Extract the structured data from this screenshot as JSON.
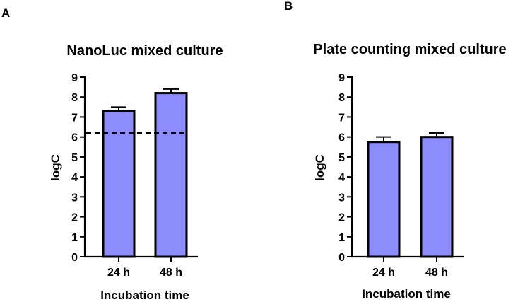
{
  "chart_data": [
    {
      "panel": "A",
      "type": "bar",
      "title": "NanoLuc mixed culture",
      "xlabel": "Incubation time",
      "ylabel": "logC",
      "categories": [
        "24 h",
        "48 h"
      ],
      "values": [
        7.3,
        8.2
      ],
      "errors": [
        0.2,
        0.2
      ],
      "ylim": [
        0,
        9
      ],
      "yticks": [
        0,
        1,
        2,
        3,
        4,
        5,
        6,
        7,
        8,
        9
      ],
      "reference_line": 6.2,
      "bar_color": "#8c8cfc"
    },
    {
      "panel": "B",
      "type": "bar",
      "title": "Plate counting mixed culture",
      "xlabel": "Incubation time",
      "ylabel": "logC",
      "categories": [
        "24 h",
        "48 h"
      ],
      "values": [
        5.75,
        6.0
      ],
      "errors": [
        0.25,
        0.2
      ],
      "ylim": [
        0,
        9
      ],
      "yticks": [
        0,
        1,
        2,
        3,
        4,
        5,
        6,
        7,
        8,
        9
      ],
      "bar_color": "#8c8cfc"
    }
  ]
}
